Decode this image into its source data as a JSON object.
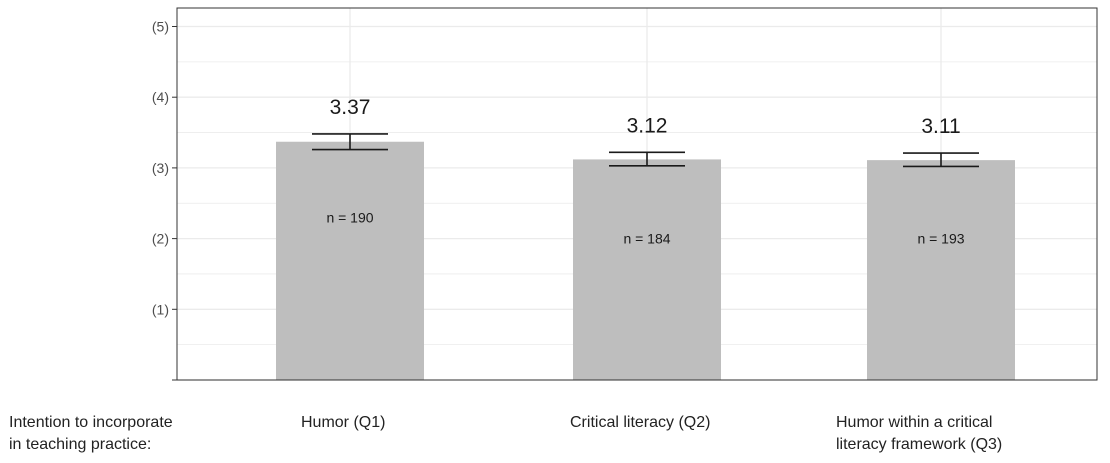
{
  "chart_data": {
    "type": "bar",
    "title": "",
    "xlabel": "",
    "ylabel": "",
    "row_label": [
      "Intention to incorporate",
      "in teaching practice:"
    ],
    "categories": [
      [
        "Humor (Q1)"
      ],
      [
        "Critical literacy (Q2)"
      ],
      [
        "Humor within a critical",
        "literacy framework (Q3)"
      ]
    ],
    "values": [
      3.37,
      3.12,
      3.11
    ],
    "value_labels": [
      "3.37",
      "3.12",
      "3.11"
    ],
    "error_low": [
      3.26,
      3.03,
      3.02
    ],
    "error_high": [
      3.48,
      3.22,
      3.21
    ],
    "n_labels": [
      "n = 190",
      "n = 184",
      "n = 193"
    ],
    "n_label_y": [
      2.3,
      2.0,
      2.0
    ],
    "ylim": [
      0,
      5.2
    ],
    "yticks": [
      0,
      1,
      2,
      3,
      4,
      5
    ],
    "ytick_labels": [
      "",
      "(1)",
      "(2)",
      "(3)",
      "(4)",
      "(5)"
    ],
    "grid": true,
    "legend": "none",
    "colors": {
      "bar": "#bebebe",
      "error_bar": "#1a1a1a",
      "grid": "#ebebeb",
      "axis": "#333333"
    }
  }
}
